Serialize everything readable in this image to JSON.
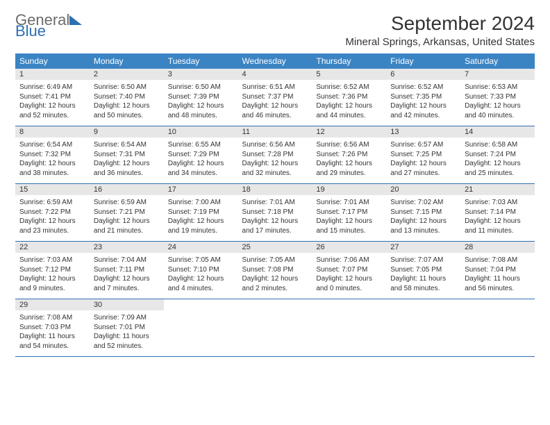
{
  "logo": {
    "part1": "General",
    "part2": "Blue"
  },
  "title": "September 2024",
  "location": "Mineral Springs, Arkansas, United States",
  "colors": {
    "header_bg": "#3b84c4",
    "header_text": "#ffffff",
    "daynum_bg": "#e7e7e7",
    "rule": "#2d6fb3",
    "logo_gray": "#6b6b6b",
    "logo_blue": "#2d6fb3",
    "body_text": "#333333",
    "page_bg": "#ffffff"
  },
  "dayHeaders": [
    "Sunday",
    "Monday",
    "Tuesday",
    "Wednesday",
    "Thursday",
    "Friday",
    "Saturday"
  ],
  "weeks": [
    [
      {
        "n": "1",
        "sr": "6:49 AM",
        "ss": "7:41 PM",
        "dl": "12 hours and 52 minutes."
      },
      {
        "n": "2",
        "sr": "6:50 AM",
        "ss": "7:40 PM",
        "dl": "12 hours and 50 minutes."
      },
      {
        "n": "3",
        "sr": "6:50 AM",
        "ss": "7:39 PM",
        "dl": "12 hours and 48 minutes."
      },
      {
        "n": "4",
        "sr": "6:51 AM",
        "ss": "7:37 PM",
        "dl": "12 hours and 46 minutes."
      },
      {
        "n": "5",
        "sr": "6:52 AM",
        "ss": "7:36 PM",
        "dl": "12 hours and 44 minutes."
      },
      {
        "n": "6",
        "sr": "6:52 AM",
        "ss": "7:35 PM",
        "dl": "12 hours and 42 minutes."
      },
      {
        "n": "7",
        "sr": "6:53 AM",
        "ss": "7:33 PM",
        "dl": "12 hours and 40 minutes."
      }
    ],
    [
      {
        "n": "8",
        "sr": "6:54 AM",
        "ss": "7:32 PM",
        "dl": "12 hours and 38 minutes."
      },
      {
        "n": "9",
        "sr": "6:54 AM",
        "ss": "7:31 PM",
        "dl": "12 hours and 36 minutes."
      },
      {
        "n": "10",
        "sr": "6:55 AM",
        "ss": "7:29 PM",
        "dl": "12 hours and 34 minutes."
      },
      {
        "n": "11",
        "sr": "6:56 AM",
        "ss": "7:28 PM",
        "dl": "12 hours and 32 minutes."
      },
      {
        "n": "12",
        "sr": "6:56 AM",
        "ss": "7:26 PM",
        "dl": "12 hours and 29 minutes."
      },
      {
        "n": "13",
        "sr": "6:57 AM",
        "ss": "7:25 PM",
        "dl": "12 hours and 27 minutes."
      },
      {
        "n": "14",
        "sr": "6:58 AM",
        "ss": "7:24 PM",
        "dl": "12 hours and 25 minutes."
      }
    ],
    [
      {
        "n": "15",
        "sr": "6:59 AM",
        "ss": "7:22 PM",
        "dl": "12 hours and 23 minutes."
      },
      {
        "n": "16",
        "sr": "6:59 AM",
        "ss": "7:21 PM",
        "dl": "12 hours and 21 minutes."
      },
      {
        "n": "17",
        "sr": "7:00 AM",
        "ss": "7:19 PM",
        "dl": "12 hours and 19 minutes."
      },
      {
        "n": "18",
        "sr": "7:01 AM",
        "ss": "7:18 PM",
        "dl": "12 hours and 17 minutes."
      },
      {
        "n": "19",
        "sr": "7:01 AM",
        "ss": "7:17 PM",
        "dl": "12 hours and 15 minutes."
      },
      {
        "n": "20",
        "sr": "7:02 AM",
        "ss": "7:15 PM",
        "dl": "12 hours and 13 minutes."
      },
      {
        "n": "21",
        "sr": "7:03 AM",
        "ss": "7:14 PM",
        "dl": "12 hours and 11 minutes."
      }
    ],
    [
      {
        "n": "22",
        "sr": "7:03 AM",
        "ss": "7:12 PM",
        "dl": "12 hours and 9 minutes."
      },
      {
        "n": "23",
        "sr": "7:04 AM",
        "ss": "7:11 PM",
        "dl": "12 hours and 7 minutes."
      },
      {
        "n": "24",
        "sr": "7:05 AM",
        "ss": "7:10 PM",
        "dl": "12 hours and 4 minutes."
      },
      {
        "n": "25",
        "sr": "7:05 AM",
        "ss": "7:08 PM",
        "dl": "12 hours and 2 minutes."
      },
      {
        "n": "26",
        "sr": "7:06 AM",
        "ss": "7:07 PM",
        "dl": "12 hours and 0 minutes."
      },
      {
        "n": "27",
        "sr": "7:07 AM",
        "ss": "7:05 PM",
        "dl": "11 hours and 58 minutes."
      },
      {
        "n": "28",
        "sr": "7:08 AM",
        "ss": "7:04 PM",
        "dl": "11 hours and 56 minutes."
      }
    ],
    [
      {
        "n": "29",
        "sr": "7:08 AM",
        "ss": "7:03 PM",
        "dl": "11 hours and 54 minutes."
      },
      {
        "n": "30",
        "sr": "7:09 AM",
        "ss": "7:01 PM",
        "dl": "11 hours and 52 minutes."
      },
      null,
      null,
      null,
      null,
      null
    ]
  ],
  "labels": {
    "sunrise": "Sunrise: ",
    "sunset": "Sunset: ",
    "daylight": "Daylight: "
  }
}
